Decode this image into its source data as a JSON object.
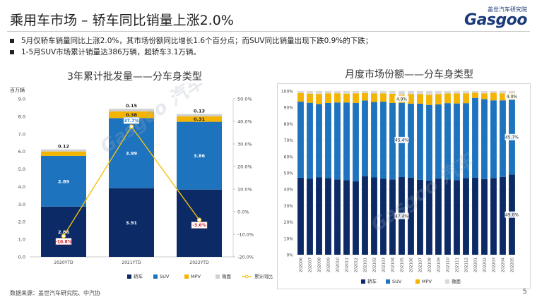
{
  "page": {
    "title": "乘用车市场 – 轿车同比销量上涨2.0%",
    "bullets": [
      "5月仅轿车销量同比上涨2.0%，其市场份额同比增长1.6个百分点；而SUV同比销量出现下跌0.9%的下跌；",
      "1-5月SUV市场累计销量达386万辆，超轿车3.1万辆。"
    ],
    "footer": "数据来源：盖世汽车研究院、中汽协",
    "page_number": "5",
    "logo": {
      "top": "盖世汽车研究院",
      "main": "Gasgoo"
    },
    "watermark": "Gasgoo 汽车"
  },
  "chart_data": [
    {
      "type": "bar",
      "stacked": true,
      "title": "3年累计批发量——分车身类型",
      "ylabel": "百万辆",
      "ylim": [
        0,
        9
      ],
      "yticks": [
        "0.0",
        "1.0",
        "2.0",
        "3.0",
        "4.0",
        "5.0",
        "6.0",
        "7.0",
        "8.0",
        "9.0"
      ],
      "y2lim": [
        -20,
        50
      ],
      "y2ticks": [
        "-20.0%",
        "-10.0%",
        "0.0%",
        "10.0%",
        "20.0%",
        "30.0%",
        "40.0%",
        "50.0%"
      ],
      "categories": [
        "2020YTD",
        "2021YTD",
        "2022YTD"
      ],
      "series": [
        {
          "name": "轿车",
          "color": "#0c2a66",
          "values": [
            2.86,
            3.91,
            3.83
          ],
          "labels": [
            "2.86",
            "3.91",
            "3.83"
          ]
        },
        {
          "name": "SUV",
          "color": "#1e73be",
          "values": [
            2.89,
            3.99,
            3.86
          ],
          "labels": [
            "2.89",
            "3.99",
            "3.86"
          ]
        },
        {
          "name": "MPV",
          "color": "#f4b400",
          "values": [
            0.25,
            0.38,
            0.31
          ],
          "labels": [
            "",
            "0.38",
            "0.31"
          ]
        },
        {
          "name": "微面",
          "color": "#d0d0d0",
          "values": [
            0.12,
            0.15,
            0.13
          ],
          "labels": [
            "0.12",
            "0.15",
            "0.13"
          ]
        }
      ],
      "line": {
        "name": "累计同比",
        "color": "#f4c20d",
        "values": [
          -10.8,
          37.7,
          -3.6
        ],
        "labels": [
          "-10.8%",
          "37.7%",
          "-3.6%"
        ]
      },
      "legend": "bottom"
    },
    {
      "type": "bar",
      "stacked": true,
      "percent": true,
      "title": "月度市场份额——分车身类型",
      "ylim": [
        0,
        100
      ],
      "yticks": [
        "0%",
        "10%",
        "20%",
        "30%",
        "40%",
        "50%",
        "60%",
        "70%",
        "80%",
        "90%",
        "100%"
      ],
      "categories": [
        "202006",
        "202007",
        "202008",
        "202009",
        "202010",
        "202011",
        "202012",
        "202101",
        "202102",
        "202103",
        "202104",
        "202105",
        "202106",
        "202107",
        "202108",
        "202109",
        "202110",
        "202111",
        "202112",
        "202201",
        "202202",
        "202203",
        "202204",
        "202205"
      ],
      "series": [
        {
          "name": "轿车",
          "color": "#0c2a66",
          "values": [
            47.0,
            46.5,
            47.2,
            46.8,
            46.0,
            45.5,
            44.8,
            48.0,
            47.2,
            46.5,
            46.0,
            47.4,
            47.0,
            45.8,
            45.2,
            46.5,
            46.0,
            45.5,
            46.8,
            47.0,
            46.2,
            46.8,
            47.5,
            49.0
          ]
        },
        {
          "name": "SUV",
          "color": "#1e73be",
          "values": [
            46.5,
            46.3,
            44.8,
            45.9,
            47.0,
            47.5,
            47.9,
            46.2,
            46.1,
            47.0,
            46.7,
            45.4,
            45.3,
            46.5,
            46.3,
            45.3,
            46.6,
            46.9,
            45.8,
            48.8,
            48.8,
            47.5,
            46.8,
            45.7
          ]
        },
        {
          "name": "MPV",
          "color": "#f4b400",
          "values": [
            5.3,
            5.6,
            6.2,
            5.9,
            5.6,
            5.4,
            5.9,
            4.5,
            5.2,
            5.0,
            5.6,
            4.9,
            5.8,
            5.9,
            6.2,
            6.4,
            5.9,
            6.1,
            6.0,
            3.2,
            3.6,
            4.6,
            4.3,
            4.0
          ]
        },
        {
          "name": "微面",
          "color": "#d9d9d9",
          "values": [
            1.2,
            1.6,
            1.8,
            1.4,
            1.4,
            1.6,
            1.4,
            1.3,
            1.5,
            1.5,
            1.7,
            2.3,
            1.9,
            1.8,
            2.3,
            1.8,
            1.5,
            1.5,
            1.4,
            1.0,
            1.4,
            1.1,
            1.4,
            1.3
          ]
        }
      ],
      "annotations": [
        {
          "category": "202105",
          "series": "轿车",
          "label": "47.4%"
        },
        {
          "category": "202105",
          "series": "SUV",
          "label": "45.4%"
        },
        {
          "category": "202105",
          "series": "MPV",
          "label": "4.9%"
        },
        {
          "category": "202205",
          "series": "轿车",
          "label": "49.0%"
        },
        {
          "category": "202205",
          "series": "SUV",
          "label": "45.7%"
        },
        {
          "category": "202205",
          "series": "MPV",
          "label": "4.0%"
        }
      ],
      "legend": "bottom"
    }
  ]
}
